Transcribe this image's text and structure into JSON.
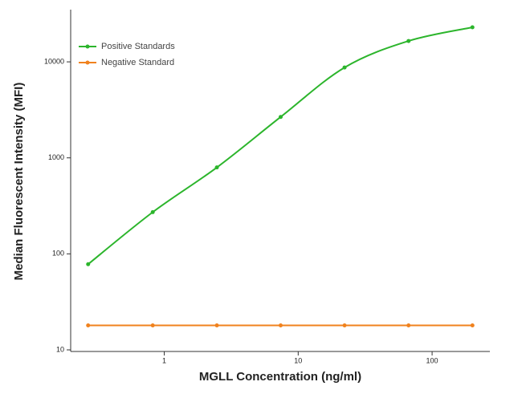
{
  "chart_data": {
    "type": "line",
    "x_label": "MGLL Concentration (ng/ml)",
    "y_label": "Median  Fluorescent Intensity  (MFI)",
    "x": [
      0.27,
      0.82,
      2.47,
      7.4,
      22.2,
      66.7,
      200
    ],
    "series": [
      {
        "name": "Positive Standards",
        "color": "#2cb52c",
        "values": [
          78,
          272,
          795,
          2670,
          8740,
          16500,
          22900
        ]
      },
      {
        "name": "Negative Standard",
        "color": "#f0821e",
        "values": [
          18,
          18,
          18,
          18,
          18,
          18,
          18
        ]
      }
    ],
    "xlim": [
      0.2,
      270
    ],
    "ylim": [
      10,
      30000
    ],
    "xticks": [
      1,
      10,
      100
    ],
    "yticks": [
      10,
      100,
      1000,
      10000
    ],
    "log_x": true,
    "log_y": true,
    "legend": "upper left"
  }
}
